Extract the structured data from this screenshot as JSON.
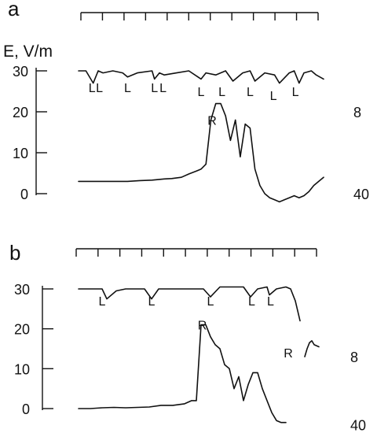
{
  "chart_data": [
    {
      "type": "line",
      "panel_label": "a",
      "ylabel": "E, V/m",
      "yticks": [
        0,
        10,
        20,
        30
      ],
      "ylim": [
        0,
        30
      ],
      "right_labels": [
        {
          "text": "8",
          "y": 20
        },
        {
          "text": "40",
          "y": 0
        }
      ],
      "time_scale_ticks": 12,
      "annotations": [
        {
          "text": "L",
          "x": 0.055,
          "y": 26
        },
        {
          "text": "L",
          "x": 0.085,
          "y": 26
        },
        {
          "text": "L",
          "x": 0.2,
          "y": 26
        },
        {
          "text": "L",
          "x": 0.31,
          "y": 26
        },
        {
          "text": "L",
          "x": 0.345,
          "y": 26
        },
        {
          "text": "L",
          "x": 0.5,
          "y": 25
        },
        {
          "text": "L",
          "x": 0.585,
          "y": 25
        },
        {
          "text": "L",
          "x": 0.7,
          "y": 25
        },
        {
          "text": "L",
          "x": 0.795,
          "y": 24
        },
        {
          "text": "L",
          "x": 0.885,
          "y": 25
        },
        {
          "text": "R",
          "x": 0.545,
          "y": 18
        }
      ],
      "series": [
        {
          "x": [
            0,
            0.03,
            0.06,
            0.08,
            0.1,
            0.14,
            0.18,
            0.2,
            0.24,
            0.3,
            0.31,
            0.33,
            0.35,
            0.4,
            0.45,
            0.5,
            0.52,
            0.56,
            0.6,
            0.63,
            0.67,
            0.7,
            0.72,
            0.76,
            0.8,
            0.82,
            0.86,
            0.88,
            0.9,
            0.92,
            0.95,
            0.97,
            1.0
          ],
          "y": [
            30,
            30,
            27,
            30,
            29.5,
            30,
            29.5,
            28.5,
            29.5,
            30,
            28,
            29.5,
            29,
            29.5,
            30,
            28,
            29.5,
            29,
            30,
            27.5,
            29.5,
            30,
            27.5,
            29.5,
            29,
            27,
            29.5,
            30,
            27,
            29.5,
            30,
            29,
            28
          ]
        },
        {
          "x": [
            0,
            0.05,
            0.1,
            0.15,
            0.2,
            0.25,
            0.3,
            0.35,
            0.38,
            0.42,
            0.45,
            0.48,
            0.5,
            0.52,
            0.54,
            0.56,
            0.58,
            0.6,
            0.62,
            0.64,
            0.66,
            0.68,
            0.7,
            0.72,
            0.74,
            0.76,
            0.78,
            0.8,
            0.82,
            0.84,
            0.86,
            0.88,
            0.9,
            0.92,
            0.94,
            0.96,
            0.98,
            1.0
          ],
          "y": [
            3,
            3,
            3,
            3,
            3,
            3.2,
            3.3,
            3.6,
            3.7,
            4,
            4.8,
            5.5,
            6,
            7.2,
            18,
            22,
            22,
            19,
            13,
            18,
            9,
            17,
            16,
            6,
            2,
            0,
            -1,
            -1.5,
            -2,
            -1.5,
            -1,
            -0.5,
            -1,
            -0.5,
            0.5,
            2,
            3,
            4
          ]
        }
      ]
    },
    {
      "type": "line",
      "panel_label": "b",
      "ylabel": "",
      "yticks": [
        0,
        10,
        20,
        30
      ],
      "ylim": [
        0,
        30
      ],
      "right_labels": [
        {
          "text": "8",
          "y": 13
        },
        {
          "text": "40",
          "y": -4
        }
      ],
      "time_scale_ticks": 12,
      "annotations": [
        {
          "text": "L",
          "x": 0.1,
          "y": 27
        },
        {
          "text": "L",
          "x": 0.31,
          "y": 27
        },
        {
          "text": "L",
          "x": 0.56,
          "y": 27
        },
        {
          "text": "L",
          "x": 0.735,
          "y": 27
        },
        {
          "text": "L",
          "x": 0.815,
          "y": 27
        },
        {
          "text": "R",
          "x": 0.525,
          "y": 21
        },
        {
          "text": "R",
          "x": 0.89,
          "y": 14
        }
      ],
      "series": [
        {
          "x": [
            0,
            0.05,
            0.1,
            0.12,
            0.16,
            0.2,
            0.28,
            0.31,
            0.34,
            0.4,
            0.46,
            0.5,
            0.53,
            0.56,
            0.6,
            0.66,
            0.7,
            0.73,
            0.76,
            0.8,
            0.81,
            0.84,
            0.88,
            0.9,
            0.92,
            0.94
          ],
          "y": [
            30,
            30,
            30,
            27.5,
            29.5,
            30,
            30,
            27.5,
            30,
            30,
            30,
            30,
            30,
            28,
            30.5,
            30.5,
            30.5,
            28,
            30,
            30.5,
            28.5,
            30,
            30.5,
            30,
            27,
            22
          ]
        },
        {
          "x": [
            0.96,
            0.97,
            0.98,
            0.99,
            1.0,
            1.02
          ],
          "y": [
            13,
            15,
            16.5,
            17,
            16,
            15.5
          ]
        },
        {
          "x": [
            0,
            0.05,
            0.1,
            0.15,
            0.2,
            0.25,
            0.3,
            0.35,
            0.4,
            0.45,
            0.48,
            0.5,
            0.52,
            0.54,
            0.56,
            0.58,
            0.6,
            0.62,
            0.64,
            0.66,
            0.68,
            0.7,
            0.72,
            0.74,
            0.76,
            0.78,
            0.8,
            0.82,
            0.84,
            0.86,
            0.88
          ],
          "y": [
            0,
            0,
            0.2,
            0.3,
            0.2,
            0.3,
            0.4,
            0.8,
            0.8,
            1.2,
            2,
            2,
            21,
            21,
            18,
            16,
            15,
            11,
            10,
            5,
            8,
            2,
            6,
            9,
            9,
            5,
            2,
            -1,
            -3,
            -3.5,
            -3.5
          ]
        }
      ]
    }
  ]
}
